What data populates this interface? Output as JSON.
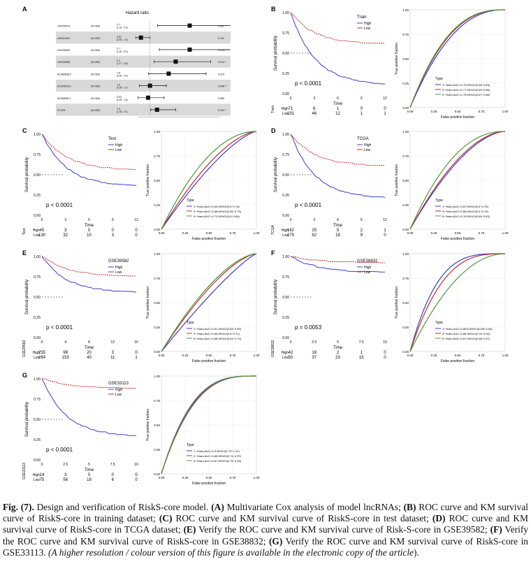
{
  "forest": {
    "letter": "A",
    "title": "Hazard ratio",
    "rows": [
      {
        "gene": "LINC00973",
        "n": "(N=362)",
        "hr": "2.7",
        "ci": "(1.32 - 5.3)",
        "p": "0.001 **",
        "est": 2.7,
        "lo": 1.32,
        "hi": 5.3
      },
      {
        "gene": "LINC01116",
        "n": "(N=362)",
        "hr": "0.61",
        "ci": "(0.40 - 1.0)",
        "p": "0.141",
        "est": 0.61,
        "lo": 0.4,
        "hi": 1.0
      },
      {
        "gene": "LINC00839",
        "n": "(N=362)",
        "hr": "2.7",
        "ci": "(1.40 - 5.0)",
        "p": "<0.001 ***",
        "est": 2.7,
        "lo": 1.4,
        "hi": 5.0
      },
      {
        "gene": "LINC02555",
        "n": "(N=362)",
        "hr": "2.1",
        "ci": "(1.17 - 3.6)",
        "p": "0.013 *",
        "est": 2.1,
        "lo": 1.17,
        "hi": 3.6
      },
      {
        "gene": "AC068038.2",
        "n": "(N=362)",
        "hr": "1.8",
        "ci": "(0.94 - 3.4)",
        "p": "0.073",
        "est": 1.8,
        "lo": 0.94,
        "hi": 3.4
      },
      {
        "gene": "AC025078.1",
        "n": "(N=362)",
        "hr": "1.0",
        "ci": "(0.55 - 1.7)",
        "p": "0.008 **",
        "est": 1.0,
        "lo": 0.55,
        "hi": 1.7
      },
      {
        "gene": "AL354836.1",
        "n": "(N=362)",
        "hr": "0.92",
        "ci": "(0.49 - 1.6)",
        "p": "0.080",
        "est": 0.92,
        "lo": 0.49,
        "hi": 1.6
      },
      {
        "gene": "PCAT6",
        "n": "(N=362)",
        "hr": "1.3",
        "ci": "(1.03 - 2.1)",
        "p": "0.031 *",
        "est": 1.3,
        "lo": 1.03,
        "hi": 2.1
      }
    ],
    "footnote1": "# Events: 89; Global p-value (Log-Rank): 2.5606e-08",
    "footnote2": "AIC: 917.02; Concordance Index: 0.73",
    "ticks": [
      0.5,
      1,
      1.5,
      2,
      2.5,
      3,
      3.5,
      4
    ],
    "tick_labels": [
      "0.5",
      "1",
      "1.5",
      "2",
      "2.5",
      "3",
      "3.5",
      "4"
    ]
  },
  "km_common": {
    "ylabel": "Survival probability",
    "xlabel": "Time",
    "yticks": [
      "0.00",
      "0.25",
      "0.50",
      "0.75",
      "1.00"
    ],
    "high_label": "High",
    "low_label": "Low",
    "strata_high": "High",
    "strata_low": "Low"
  },
  "roc_common": {
    "ylabel": "True positive fraction",
    "xlabel": "False positive fraction",
    "ticks": [
      "0.00",
      "0.25",
      "0.50",
      "0.75",
      "1.00"
    ],
    "legend_title": "Type"
  },
  "panels": [
    {
      "letter": "B",
      "cohort": "Train",
      "pval": "p < 0.0001",
      "side": "Train",
      "xticks": [
        "0",
        "3",
        "6",
        "9",
        "12"
      ],
      "xmax": 12,
      "high_risk": [
        "71",
        "6",
        "1",
        "0",
        "0"
      ],
      "low_risk": [
        "191",
        "46",
        "12",
        "1",
        "1"
      ],
      "high_drop": 0.9,
      "low_drop": 0.4,
      "roc": [
        "1−Years,AUC=0.75,95%CI(0.66−0.83)",
        "3−Years,AUC=0.77,95%CI(0.69−0.86)",
        "5−Years,AUC=0.78,95%CI(0.67−0.88)"
      ],
      "roc_k": [
        2.3,
        2.5,
        2.6
      ]
    },
    {
      "letter": "C",
      "cohort": "Test",
      "pval": "p < 0.0001",
      "side": "Test",
      "xticks": [
        "0",
        "3",
        "6",
        "9",
        "12"
      ],
      "xmax": 12,
      "high_risk": [
        "45",
        "3",
        "0",
        "0",
        "0"
      ],
      "low_risk": [
        "130",
        "32",
        "10",
        "3",
        "0"
      ],
      "high_drop": 0.65,
      "low_drop": 0.45,
      "roc": [
        "1−Years,AUC=0.64,95%CI(0.5−0.78)",
        "3−Years,AUC=0.68,95%CI(0.56−0.79)",
        "5−Years,AUC=0.73,95%CI(0.6−0.86)"
      ],
      "roc_k": [
        1.4,
        1.6,
        2.0
      ]
    },
    {
      "letter": "D",
      "cohort": "TCGA",
      "pval": "p < 0.0001",
      "side": "TCGA",
      "xticks": [
        "0",
        "3",
        "6",
        "9",
        "12"
      ],
      "xmax": 12,
      "high_risk": [
        "162",
        "25",
        "5",
        "2",
        "1"
      ],
      "low_risk": [
        "275",
        "62",
        "18",
        "9",
        "0"
      ],
      "high_drop": 0.8,
      "low_drop": 0.4,
      "roc": [
        "1−Years,AUC=0.67,95%CI(0.6−0.75)",
        "3−Years,AUC=0.68,95%CI(0.6−0.75)",
        "5−Years,AUC=0.76,95%CI(0.68−0.83)"
      ],
      "roc_k": [
        1.7,
        1.8,
        2.2
      ]
    },
    {
      "letter": "E",
      "cohort": "GSE39582",
      "pval": "p < 0.0001",
      "side": "GSE39582",
      "xticks": [
        "0",
        "4",
        "8",
        "12",
        "16"
      ],
      "xmax": 16,
      "high_risk": [
        "255",
        "98",
        "20",
        "3",
        "0"
      ],
      "low_risk": [
        "264",
        "153",
        "40",
        "11",
        "1"
      ],
      "high_drop": 0.45,
      "low_drop": 0.25,
      "roc": [
        "1−Years,AUC=0.61,95%CI(0.54−0.69)",
        "3−Years,AUC=0.66,95%CI(0.6−0.72)",
        "5−Years,AUC=0.68,95%CI(0.62−0.74)"
      ],
      "roc_k": [
        1.2,
        1.5,
        1.6
      ]
    },
    {
      "letter": "F",
      "cohort": "GSE38832",
      "pval": "p = 0.0053",
      "side": "GSE38832",
      "xticks": [
        "0",
        "2.5",
        "5",
        "7.5",
        "10"
      ],
      "xmax": 10,
      "high_risk": [
        "42",
        "18",
        "2",
        "1",
        "0"
      ],
      "low_risk": [
        "50",
        "37",
        "23",
        "15",
        "0"
      ],
      "high_drop": 0.2,
      "low_drop": 0.08,
      "roc": [
        "1−Years,AUC=0.85%,95%CI(0.65−0.95)",
        "3−Years,AUC=0.86,95%CI(0.76−0.96)",
        "5−Years,AUC=0.67,95%CI(0.38−0.97)"
      ],
      "roc_k": [
        3.6,
        3.0,
        2.0
      ]
    },
    {
      "letter": "G",
      "cohort": "GSE33113",
      "pval": "p < 0.0001",
      "side": "GSE33113",
      "xticks": [
        "0",
        "2.5",
        "5",
        "7.5",
        "10"
      ],
      "xmax": 10,
      "high_risk": [
        "14",
        "3",
        "0",
        "0",
        "0"
      ],
      "low_risk": [
        "75",
        "56",
        "18",
        "6",
        "0"
      ],
      "high_drop": 0.72,
      "low_drop": 0.12,
      "roc": [
        "1−Years,AUC=0.9,95%CI(0.79−1.01)",
        "3−Years,AUC=0.86,95%CI(0.74−0.97)",
        "5−Years,AUC=0.87,95%CI(0.75−0.99)"
      ],
      "roc_k": [
        3.2,
        3.0,
        3.1
      ]
    }
  ],
  "caption": {
    "fig": "Fig. (7).",
    "lead": " Design and verification of RiskS-core model. ",
    "pA": "(A)",
    "tA": " Multivariate Cox analysis of model lncRNAs; ",
    "pB": "(B)",
    "tB": " ROC curve and KM survival curve of RiskS-core in training dataset; ",
    "pC": "(C)",
    "tC": " ROC curve and KM survival curve of RiskS-core in test dataset; ",
    "pD": "(D)",
    "tD": " ROC curve and KM survival curve of RiskS-core in TCGA dataset; ",
    "pE": "(E)",
    "tE": " Verify the ROC curve and KM survival curve of Risk-S-core in GSE39582; ",
    "pF": "(F)",
    "tF": " Verify the ROC curve and KM survival curve of RiskS-core in GSE38832; ",
    "pG": "(G)",
    "tG": " Verify the ROC curve and KM survival curve of RiskS-core in GSE33113. ",
    "italic": "(A higher resolution / colour version of this figure is available in the electronic copy of the article",
    "end": ")."
  },
  "colors": {
    "high": "#3b3bd6",
    "low": "#cc2a2a",
    "y1": "#3b3bd6",
    "y3": "#c02a2a",
    "y5": "#4a9a3a",
    "grid": "#ececec"
  }
}
